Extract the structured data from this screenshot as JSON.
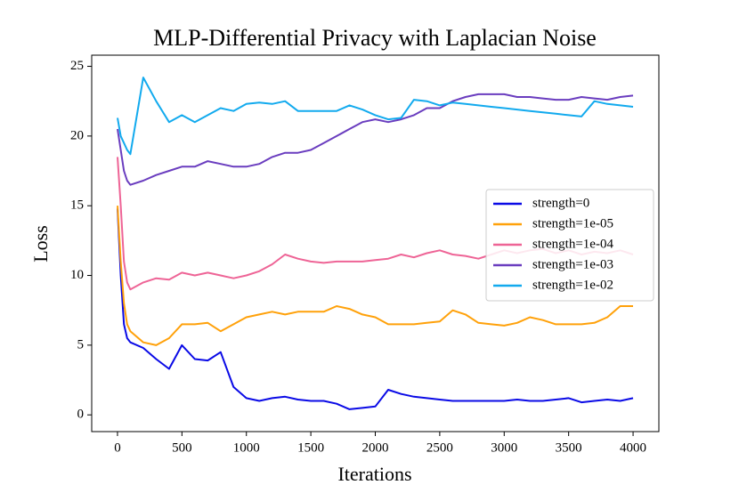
{
  "chart_data": {
    "type": "line",
    "title": "MLP-Differential Privacy with Laplacian Noise",
    "x_label": "Iterations",
    "y_label": "Loss",
    "x": [
      0,
      25,
      50,
      75,
      100,
      200,
      300,
      400,
      500,
      600,
      700,
      800,
      900,
      1000,
      1100,
      1200,
      1300,
      1400,
      1500,
      1600,
      1700,
      1800,
      1900,
      2000,
      2100,
      2200,
      2300,
      2400,
      2500,
      2600,
      2700,
      2800,
      2900,
      3000,
      3100,
      3200,
      3300,
      3400,
      3500,
      3600,
      3700,
      3800,
      3900,
      4000
    ],
    "series": [
      {
        "name": "strength=0",
        "color": "#0a0ae6",
        "values": [
          14.8,
          10,
          6.5,
          5.5,
          5.2,
          4.8,
          4,
          3.3,
          5,
          4,
          3.9,
          4.5,
          2,
          1.2,
          1.0,
          1.2,
          1.3,
          1.1,
          1.0,
          1.0,
          0.8,
          0.4,
          0.5,
          0.6,
          1.8,
          1.5,
          1.3,
          1.2,
          1.1,
          1.0,
          1.0,
          1.0,
          1.0,
          1.0,
          1.1,
          1.0,
          1.0,
          1.1,
          1.2,
          0.9,
          1.0,
          1.1,
          1.0,
          1.2
        ]
      },
      {
        "name": "strength=1e-05",
        "color": "#ffa10a",
        "values": [
          15,
          11,
          8,
          6.5,
          6,
          5.2,
          5.0,
          5.5,
          6.5,
          6.5,
          6.6,
          6,
          6.5,
          7,
          7.2,
          7.4,
          7.2,
          7.4,
          7.4,
          7.4,
          7.8,
          7.6,
          7.2,
          7.0,
          6.5,
          6.5,
          6.5,
          6.6,
          6.7,
          7.5,
          7.2,
          6.6,
          6.5,
          6.4,
          6.6,
          7.0,
          6.8,
          6.5,
          6.5,
          6.5,
          6.6,
          7.0,
          7.8,
          7.8
        ]
      },
      {
        "name": "strength=1e-04",
        "color": "#ee6496",
        "values": [
          18.5,
          15,
          11,
          9.5,
          9,
          9.5,
          9.8,
          9.7,
          10.2,
          10,
          10.2,
          10,
          9.8,
          10,
          10.3,
          10.8,
          11.5,
          11.2,
          11,
          10.9,
          11,
          11,
          11,
          11.1,
          11.2,
          11.5,
          11.3,
          11.6,
          11.8,
          11.5,
          11.4,
          11.2,
          11.5,
          11.8,
          11.6,
          11.8,
          11.9,
          11.6,
          11.8,
          11.5,
          11.7,
          11.6,
          11.8,
          11.5
        ]
      },
      {
        "name": "strength=1e-03",
        "color": "#6a3dbf",
        "values": [
          20.5,
          19,
          17.5,
          16.8,
          16.5,
          16.8,
          17.2,
          17.5,
          17.8,
          17.8,
          18.2,
          18,
          17.8,
          17.8,
          18,
          18.5,
          18.8,
          18.8,
          19,
          19.5,
          20,
          20.5,
          21,
          21.2,
          21,
          21.2,
          21.5,
          22,
          22,
          22.5,
          22.8,
          23,
          23,
          23,
          22.8,
          22.8,
          22.7,
          22.6,
          22.6,
          22.8,
          22.7,
          22.6,
          22.8,
          22.9
        ]
      },
      {
        "name": "strength=1e-02",
        "color": "#12aaee",
        "values": [
          21.3,
          20,
          19.5,
          19,
          18.7,
          24.2,
          22.5,
          21,
          21.5,
          21,
          21.5,
          22,
          21.8,
          22.3,
          22.4,
          22.3,
          22.5,
          21.8,
          21.8,
          21.8,
          21.8,
          22.2,
          21.9,
          21.5,
          21.2,
          21.3,
          22.6,
          22.5,
          22.2,
          22.4,
          22.3,
          22.2,
          22.1,
          22,
          21.9,
          21.8,
          21.7,
          21.6,
          21.5,
          21.4,
          22.5,
          22.3,
          22.2,
          22.1
        ]
      }
    ],
    "xlim": [
      -200,
      4200
    ],
    "ylim": [
      -1.2,
      25.8
    ],
    "xticks": [
      0,
      500,
      1000,
      1500,
      2000,
      2500,
      3000,
      3500,
      4000
    ],
    "yticks": [
      0,
      5,
      10,
      15,
      20,
      25
    ],
    "legend": "center right"
  }
}
